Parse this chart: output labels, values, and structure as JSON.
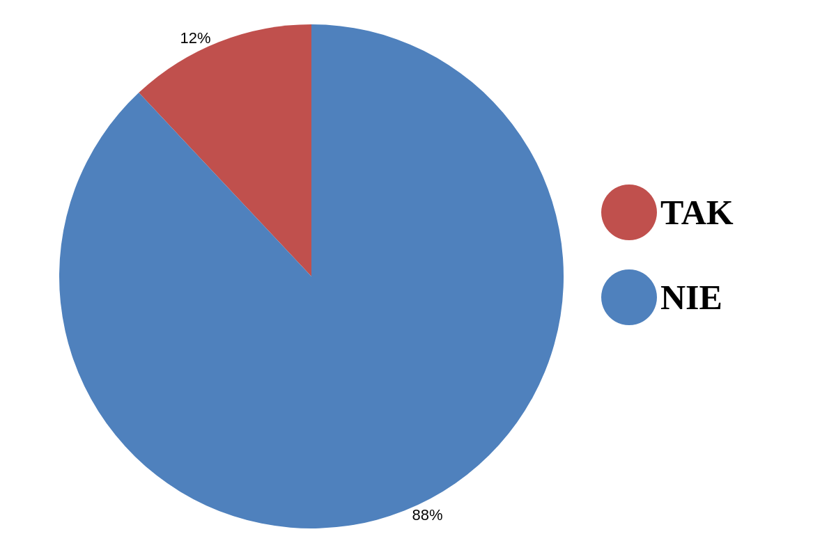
{
  "chart_data": {
    "type": "pie",
    "categories": [
      "TAK",
      "NIE"
    ],
    "values": [
      12,
      88
    ],
    "colors": [
      "#c0504d",
      "#4f81bd"
    ],
    "value_labels": [
      "12%",
      "88%"
    ],
    "legend": "right"
  }
}
